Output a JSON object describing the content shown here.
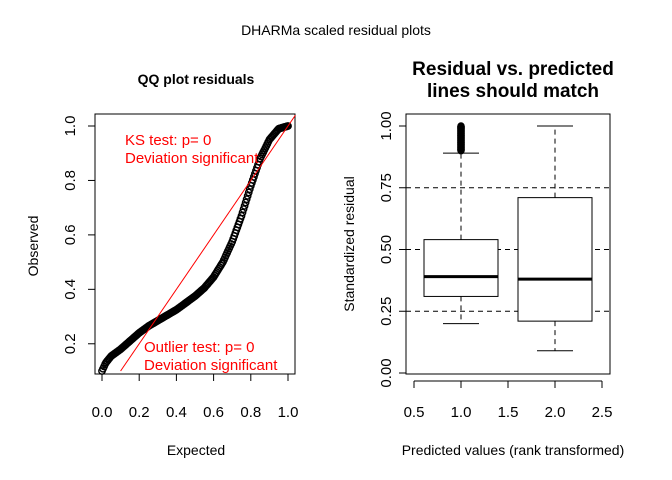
{
  "figure": {
    "title": "DHARMa scaled residual plots"
  },
  "chart_data": [
    {
      "type": "scatter",
      "title": "QQ plot residuals",
      "xlabel": "Expected",
      "ylabel": "Observed",
      "xlim": [
        0.0,
        1.0
      ],
      "ylim": [
        0.1,
        1.0
      ],
      "xticks": [
        "0.0",
        "0.2",
        "0.4",
        "0.6",
        "0.8",
        "1.0"
      ],
      "yticks": [
        "0.2",
        "0.4",
        "0.6",
        "0.8",
        "1.0"
      ],
      "reference_line": {
        "intercept": 0,
        "slope": 1,
        "color": "#ff0000"
      },
      "series": [
        {
          "x": [
            0.0,
            0.02,
            0.05,
            0.1,
            0.15,
            0.2,
            0.25,
            0.3,
            0.35,
            0.4,
            0.45,
            0.5,
            0.55,
            0.6,
            0.65,
            0.7,
            0.75,
            0.8,
            0.85,
            0.9,
            0.95,
            1.0
          ],
          "y": [
            0.1,
            0.13,
            0.155,
            0.18,
            0.21,
            0.24,
            0.265,
            0.285,
            0.305,
            0.325,
            0.35,
            0.375,
            0.405,
            0.445,
            0.5,
            0.575,
            0.67,
            0.78,
            0.88,
            0.95,
            0.99,
            1.0
          ]
        }
      ],
      "annotations": [
        {
          "line1": "KS test: p= 0",
          "line2": "Deviation  significant"
        },
        {
          "line1": "Outlier test: p= 0",
          "line2": "Deviation  significant"
        }
      ]
    },
    {
      "type": "box",
      "title_line1": "Residual vs. predicted",
      "title_line2": "lines should match",
      "xlabel": "Predicted values (rank transformed)",
      "ylabel": "Standardized residual",
      "xlim": [
        0.5,
        2.5
      ],
      "ylim": [
        0.0,
        1.0
      ],
      "xticks": [
        "0.5",
        "1.0",
        "1.5",
        "2.0",
        "2.5"
      ],
      "yticks": [
        "0.00",
        "0.25",
        "0.50",
        "0.75",
        "1.00"
      ],
      "reference_lines": [
        0.25,
        0.5,
        0.75
      ],
      "boxes": [
        {
          "x": 1.0,
          "min": 0.2,
          "q1": 0.31,
          "median": 0.39,
          "q3": 0.54,
          "whisker_high": 0.89,
          "outliers_from": 0.9,
          "outliers_to": 1.0
        },
        {
          "x": 2.0,
          "min": 0.09,
          "q1": 0.21,
          "median": 0.38,
          "q3": 0.71,
          "whisker_high": 1.0
        }
      ]
    }
  ]
}
